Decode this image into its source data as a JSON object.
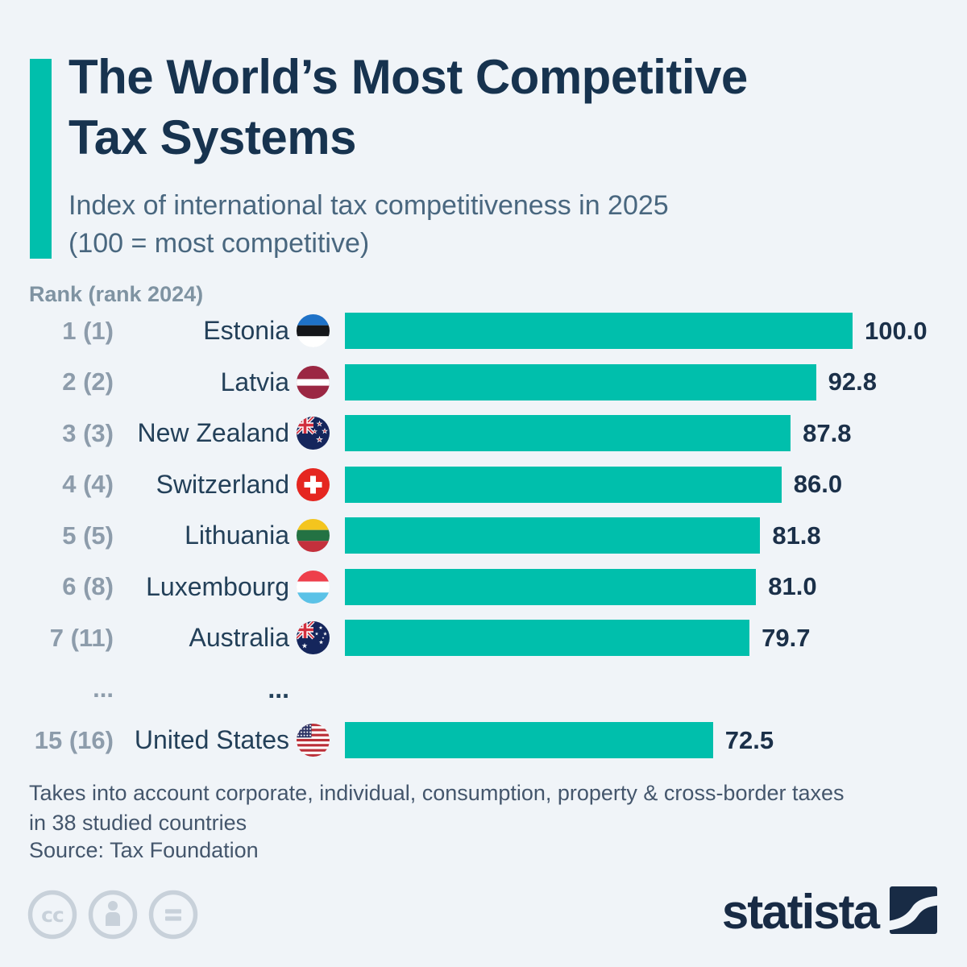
{
  "header": {
    "title_line1": "The World’s Most Competitive",
    "title_line2": "Tax Systems",
    "subtitle_line1": "Index of international tax competitiveness in 2025",
    "subtitle_line2": "(100 = most competitive)"
  },
  "chart": {
    "rank_header": "Rank (rank 2024)",
    "rows": [
      {
        "rank": "1 (1)",
        "country": "Estonia",
        "flag": "estonia-flag",
        "value": 100.0,
        "value_label": "100.0"
      },
      {
        "rank": "2 (2)",
        "country": "Latvia",
        "flag": "latvia-flag",
        "value": 92.8,
        "value_label": "92.8"
      },
      {
        "rank": "3 (3)",
        "country": "New Zealand",
        "flag": "new-zealand-flag",
        "value": 87.8,
        "value_label": "87.8"
      },
      {
        "rank": "4 (4)",
        "country": "Switzerland",
        "flag": "switzerland-flag",
        "value": 86.0,
        "value_label": "86.0"
      },
      {
        "rank": "5 (5)",
        "country": "Lithuania",
        "flag": "lithuania-flag",
        "value": 81.8,
        "value_label": "81.8"
      },
      {
        "rank": "6 (8)",
        "country": "Luxembourg",
        "flag": "luxembourg-flag",
        "value": 81.0,
        "value_label": "81.0"
      },
      {
        "rank": "7 (11)",
        "country": "Australia",
        "flag": "australia-flag",
        "value": 79.7,
        "value_label": "79.7"
      },
      {
        "rank": "15 (16)",
        "country": "United States",
        "flag": "united-states-flag",
        "value": 72.5,
        "value_label": "72.5"
      }
    ],
    "ellipsis": {
      "rank": "...",
      "country": "..."
    }
  },
  "footnote": {
    "line1": "Takes into account corporate, individual, consumption, property & cross-border taxes",
    "line2": "in 38 studied countries"
  },
  "source": "Source: Tax Foundation",
  "brand": {
    "wordmark": "statista"
  },
  "license": {
    "icons": [
      "cc-icon",
      "attribution-person-icon",
      "no-derivatives-equals-icon"
    ]
  },
  "colors": {
    "bar_teal": "#00bfac",
    "title_navy": "#17334f",
    "background": "#f0f4f8",
    "rank_gray": "#8d9cab",
    "brand_navy": "#182b45"
  },
  "chart_data": {
    "type": "bar",
    "orientation": "horizontal",
    "title": "The World’s Most Competitive Tax Systems",
    "subtitle": "Index of international tax competitiveness in 2025 (100 = most competitive)",
    "categories": [
      "Estonia",
      "Latvia",
      "New Zealand",
      "Switzerland",
      "Lithuania",
      "Luxembourg",
      "Australia",
      "United States"
    ],
    "values": [
      100.0,
      92.8,
      87.8,
      86.0,
      81.8,
      81.0,
      79.7,
      72.5
    ],
    "rank_2025": [
      1,
      2,
      3,
      4,
      5,
      6,
      7,
      15
    ],
    "rank_2024": [
      1,
      2,
      3,
      4,
      5,
      8,
      11,
      16
    ],
    "gap_note": "rows 8-14 omitted (shown as ...)",
    "xlabel": "",
    "ylabel": "Rank (rank 2024)",
    "xlim": [
      0,
      100
    ],
    "grid": false,
    "legend": false,
    "bar_color": "#00bfac",
    "source": "Tax Foundation"
  }
}
